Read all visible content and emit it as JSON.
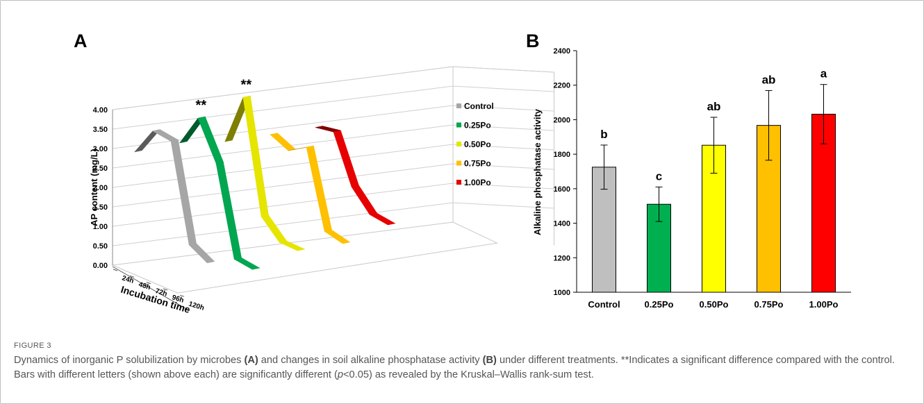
{
  "figure": {
    "label": "FIGURE 3",
    "caption": {
      "t1": "Dynamics of inorganic P solubilization by microbes ",
      "a": "(A)",
      "t2": " and changes in soil alkaline phosphatase activity ",
      "b": "(B)",
      "t3": " under different treatments. **Indicates a significant difference compared with the control. Bars with different letters (shown above each) are significantly different (",
      "p": "p",
      "t4": "<0.05) as revealed by the Kruskal–Wallis rank-sum test."
    }
  },
  "chart_data": [
    {
      "panel": "A",
      "type": "line",
      "style": "3d-ribbon",
      "ylabel": "AP content (mg/L)",
      "xlabel": "Incubation time",
      "ylim": [
        0,
        4
      ],
      "yticks": [
        "0.00",
        "0.50",
        "1.00",
        "1.50",
        "2.00",
        "2.50",
        "3.00",
        "3.50",
        "4.00"
      ],
      "x": [
        "24h",
        "48h",
        "72h",
        "96h",
        "120h"
      ],
      "series": [
        {
          "name": "Control",
          "color": "#a6a6a6",
          "values": [
            2.8,
            3.5,
            3.4,
            0.9,
            0.6
          ],
          "marker": ""
        },
        {
          "name": "0.25Po",
          "color": "#00a650",
          "values": [
            2.8,
            3.6,
            2.6,
            0.3,
            0.2
          ],
          "marker": "**"
        },
        {
          "name": "0.50Po",
          "color": "#e5e500",
          "values": [
            2.6,
            3.9,
            1.0,
            0.5,
            0.45
          ],
          "marker": "**"
        },
        {
          "name": "0.75Po",
          "color": "#ffc000",
          "values": [
            2.55,
            2.3,
            2.55,
            0.55,
            0.4
          ],
          "marker": ""
        },
        {
          "name": "1.00Po",
          "color": "#e60000",
          "values": [
            2.5,
            2.55,
            1.3,
            0.75,
            0.65
          ],
          "marker": ""
        }
      ]
    },
    {
      "panel": "B",
      "type": "bar",
      "ylabel": "Alkaline phosphatase activity",
      "ylim": [
        1000,
        2400
      ],
      "yticks": [
        "1000",
        "1200",
        "1400",
        "1600",
        "1800",
        "2000",
        "2200",
        "2400"
      ],
      "categories": [
        "Control",
        "0.25Po",
        "0.50Po",
        "0.75Po",
        "1.00Po"
      ],
      "values": [
        1725,
        1510,
        1852,
        1967,
        2032
      ],
      "errors": [
        128,
        100,
        162,
        202,
        172
      ],
      "letters": [
        "b",
        "c",
        "ab",
        "ab",
        "a"
      ],
      "colors": [
        "#bfbfbf",
        "#00b050",
        "#ffff00",
        "#ffc000",
        "#ff0000"
      ]
    }
  ]
}
